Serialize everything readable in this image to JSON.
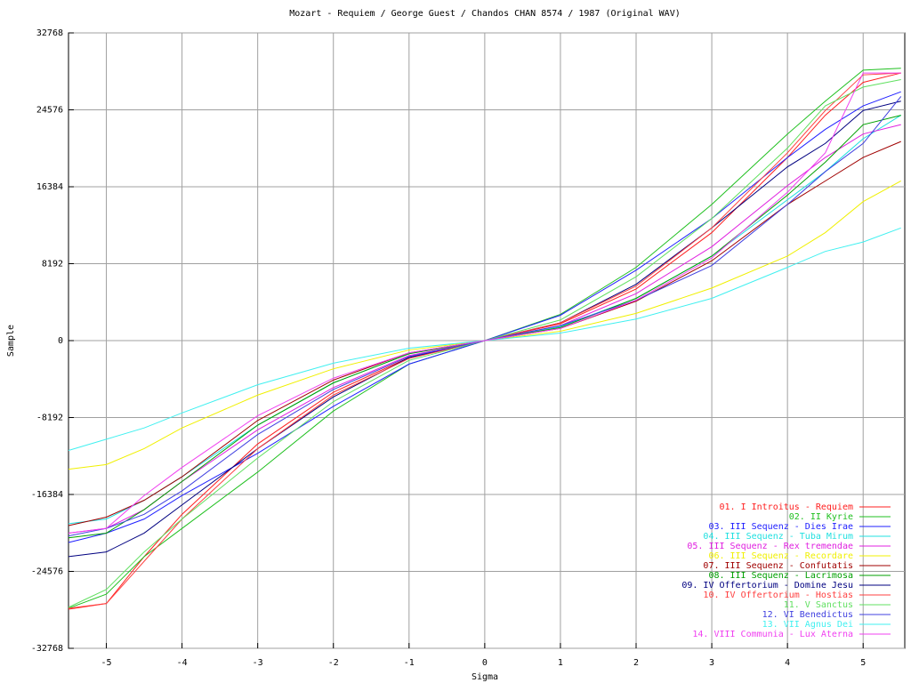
{
  "chart_data": {
    "type": "line",
    "title": "Mozart - Requiem / George Guest / Chandos CHAN 8574 / 1987 (Original WAV)",
    "x_label": "Sigma",
    "y_label": "Sample",
    "x": [
      -5.5,
      -5,
      -4.5,
      -4,
      -3,
      -2,
      -1,
      0,
      1,
      2,
      3,
      4,
      4.5,
      5,
      5.5
    ],
    "xlim": [
      -5.5,
      5.55
    ],
    "ylim": [
      -32768,
      32768
    ],
    "xticks": [
      -5,
      -4,
      -3,
      -2,
      -1,
      0,
      1,
      2,
      3,
      4,
      5
    ],
    "yticks": [
      -32768,
      -24576,
      -16384,
      -8192,
      0,
      8192,
      16384,
      24576,
      32768
    ],
    "grid": true,
    "legend": "lower right",
    "series": [
      {
        "name": "01. I Introitus - Requiem",
        "color": "#ff2020",
        "values": [
          -28600,
          -28000,
          -23000,
          -18500,
          -11000,
          -5500,
          -1800,
          0,
          1800,
          5500,
          11500,
          19500,
          24000,
          27500,
          28500
        ]
      },
      {
        "name": "02. II Kyrie",
        "color": "#20c020",
        "values": [
          -28500,
          -27000,
          -23000,
          -20000,
          -14000,
          -7500,
          -2500,
          0,
          2800,
          7800,
          14500,
          22000,
          25500,
          28800,
          29000
        ]
      },
      {
        "name": "03. III Sequenz - Dies Irae",
        "color": "#2020ff",
        "values": [
          -21500,
          -20500,
          -19000,
          -16500,
          -12000,
          -7000,
          -2500,
          0,
          2700,
          7500,
          13000,
          19500,
          22500,
          25000,
          26500
        ]
      },
      {
        "name": "04. III Sequenz - Tuba Mirum",
        "color": "#20e0e0",
        "values": [
          -19500,
          -19000,
          -17000,
          -14500,
          -9000,
          -4500,
          -1400,
          0,
          1500,
          4500,
          9000,
          15000,
          18000,
          21500,
          24000
        ]
      },
      {
        "name": "05. III Sequenz - Rex tremendae",
        "color": "#e020e0",
        "values": [
          -20500,
          -20000,
          -18000,
          -15000,
          -9500,
          -5000,
          -1600,
          0,
          1600,
          5000,
          10000,
          16500,
          19500,
          22000,
          23000
        ]
      },
      {
        "name": "06. III Sequenz - Recordare",
        "color": "#f0f000",
        "values": [
          -13700,
          -13200,
          -11500,
          -9300,
          -5800,
          -3000,
          -1000,
          0,
          1000,
          2900,
          5600,
          9000,
          11500,
          14800,
          17000
        ]
      },
      {
        "name": "07. III Sequenz - Confutatis",
        "color": "#a00000",
        "values": [
          -19700,
          -18800,
          -17000,
          -14500,
          -8500,
          -4200,
          -1300,
          0,
          1300,
          4200,
          8500,
          14500,
          17000,
          19500,
          21200
        ]
      },
      {
        "name": "08. III Sequenz - Lacrimosa",
        "color": "#00a000",
        "values": [
          -21000,
          -20500,
          -18000,
          -15000,
          -9000,
          -4500,
          -1400,
          0,
          1400,
          4500,
          9000,
          15500,
          19000,
          23000,
          24000
        ]
      },
      {
        "name": "09. IV Offertorium - Domine Jesu",
        "color": "#000080",
        "values": [
          -23000,
          -22500,
          -20500,
          -17500,
          -11500,
          -6000,
          -1800,
          0,
          1900,
          6000,
          12000,
          18500,
          21000,
          24500,
          25500
        ]
      },
      {
        "name": "10. IV Offertorium - Hostias",
        "color": "#ff4040",
        "values": [
          -28500,
          -28000,
          -23500,
          -19000,
          -11500,
          -5800,
          -1900,
          0,
          1900,
          5800,
          12000,
          20000,
          24500,
          28300,
          28500
        ]
      },
      {
        "name": "11. V Sanctus",
        "color": "#60e060",
        "values": [
          -28400,
          -26500,
          -22500,
          -19000,
          -12500,
          -6500,
          -2100,
          0,
          2200,
          6800,
          13000,
          20500,
          25000,
          27000,
          27800
        ]
      },
      {
        "name": "12. VI Benedictus",
        "color": "#4040e0",
        "values": [
          -20800,
          -20000,
          -18500,
          -16000,
          -10000,
          -5200,
          -1700,
          0,
          1600,
          4300,
          8000,
          14500,
          18000,
          21000,
          26000
        ]
      },
      {
        "name": "13. VII Agnus Dei",
        "color": "#40f0f0",
        "values": [
          -11700,
          -10500,
          -9300,
          -7700,
          -4700,
          -2400,
          -800,
          0,
          800,
          2300,
          4500,
          7800,
          9500,
          10500,
          12000
        ]
      },
      {
        "name": "14. VIII Communia - Lux Aterna",
        "color": "#f040f0",
        "values": [
          -20500,
          -20000,
          -16500,
          -13500,
          -8000,
          -4000,
          -1300,
          0,
          1300,
          4300,
          8800,
          15800,
          20000,
          28500,
          28500
        ]
      }
    ]
  }
}
